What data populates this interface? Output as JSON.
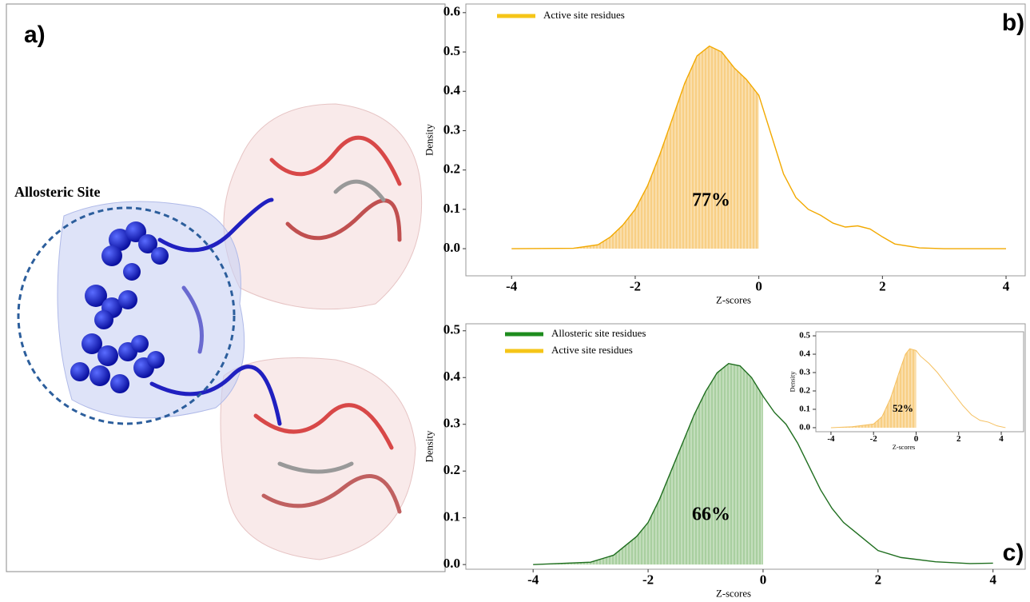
{
  "panel_a": {
    "label": "a)",
    "annotation": "Allosteric Site"
  },
  "chart_data": [
    {
      "type": "density",
      "panel_label": "b)",
      "xlabel": "Z-scores",
      "ylabel": "Density",
      "annotation": "77%",
      "legend": [
        {
          "name": "Active site residues",
          "color": "#f5c518"
        }
      ],
      "x": [
        -4,
        -3,
        -2.6,
        -2.4,
        -2.2,
        -2,
        -1.8,
        -1.6,
        -1.4,
        -1.2,
        -1.0,
        -0.8,
        -0.6,
        -0.4,
        -0.2,
        0,
        0.2,
        0.4,
        0.6,
        0.8,
        1.0,
        1.2,
        1.4,
        1.6,
        1.8,
        2.0,
        2.2,
        2.6,
        3,
        4
      ],
      "series": [
        {
          "color": "#f2a900",
          "fill": "#f8cf85",
          "values": [
            0,
            0.001,
            0.01,
            0.03,
            0.06,
            0.1,
            0.16,
            0.24,
            0.33,
            0.42,
            0.49,
            0.515,
            0.5,
            0.46,
            0.43,
            0.39,
            0.29,
            0.19,
            0.13,
            0.1,
            0.085,
            0.065,
            0.055,
            0.058,
            0.05,
            0.03,
            0.012,
            0.002,
            0,
            0
          ]
        }
      ],
      "shade_below": 0,
      "xlim": [
        -4.74,
        4.31
      ],
      "ylim": [
        -0.069,
        0.622
      ],
      "xticks": [
        -4,
        -2,
        0,
        2,
        4
      ],
      "yticks": [
        {
          "value": 0,
          "label": "0.0"
        },
        0.1,
        0.2,
        0.3,
        0.4,
        0.5,
        0.6
      ]
    },
    {
      "type": "density",
      "panel_label": "c)",
      "xlabel": "Z-scores",
      "ylabel": "Density",
      "annotation": "66%",
      "legend": [
        {
          "name": "Allosteric site residues",
          "color": "#1e8c1e"
        },
        {
          "name": "Active site residues",
          "color": "#f5c518"
        }
      ],
      "x": [
        -4,
        -3,
        -2.6,
        -2.2,
        -2,
        -1.8,
        -1.6,
        -1.4,
        -1.2,
        -1.0,
        -0.8,
        -0.6,
        -0.4,
        -0.2,
        0,
        0.2,
        0.4,
        0.6,
        0.8,
        1.0,
        1.2,
        1.4,
        1.6,
        1.8,
        2.0,
        2.4,
        3,
        3.6,
        4
      ],
      "series": [
        {
          "color": "#1f6e1f",
          "fill": "#a9cfa0",
          "values": [
            0,
            0.005,
            0.02,
            0.06,
            0.09,
            0.14,
            0.2,
            0.26,
            0.32,
            0.37,
            0.41,
            0.43,
            0.425,
            0.4,
            0.36,
            0.325,
            0.3,
            0.26,
            0.21,
            0.16,
            0.12,
            0.09,
            0.07,
            0.05,
            0.03,
            0.015,
            0.006,
            0.002,
            0.003
          ]
        }
      ],
      "shade_below": 0,
      "xlim": [
        -5.17,
        4.56
      ],
      "ylim": [
        -0.01,
        0.515
      ],
      "xticks": [
        -4,
        -2,
        0,
        2,
        4
      ],
      "yticks": [
        {
          "value": 0,
          "label": "0.0"
        },
        0.1,
        0.2,
        0.3,
        0.4,
        0.5
      ]
    },
    {
      "type": "density",
      "xlabel": "Z-scores",
      "ylabel": "Density",
      "annotation": "52%",
      "x": [
        -4,
        -3,
        -2,
        -1.6,
        -1.2,
        -0.8,
        -0.5,
        -0.3,
        0,
        0.2,
        0.6,
        1,
        1.4,
        1.8,
        2.2,
        2.6,
        3,
        3.4,
        3.8,
        4.2
      ],
      "series": [
        {
          "color": "#f5c060",
          "fill": "#f8cf85",
          "values": [
            0,
            0.005,
            0.02,
            0.06,
            0.16,
            0.3,
            0.4,
            0.43,
            0.42,
            0.39,
            0.35,
            0.3,
            0.24,
            0.18,
            0.12,
            0.07,
            0.04,
            0.03,
            0.01,
            0
          ]
        }
      ],
      "shade_below": 0,
      "xlim": [
        -4.71,
        5.05
      ],
      "ylim": [
        -0.022,
        0.522
      ],
      "xticks": [
        -4,
        -2,
        0,
        2,
        4
      ],
      "yticks": [
        {
          "value": 0,
          "label": "0.0"
        },
        0.1,
        0.2,
        0.3,
        0.4,
        0.5
      ]
    }
  ]
}
